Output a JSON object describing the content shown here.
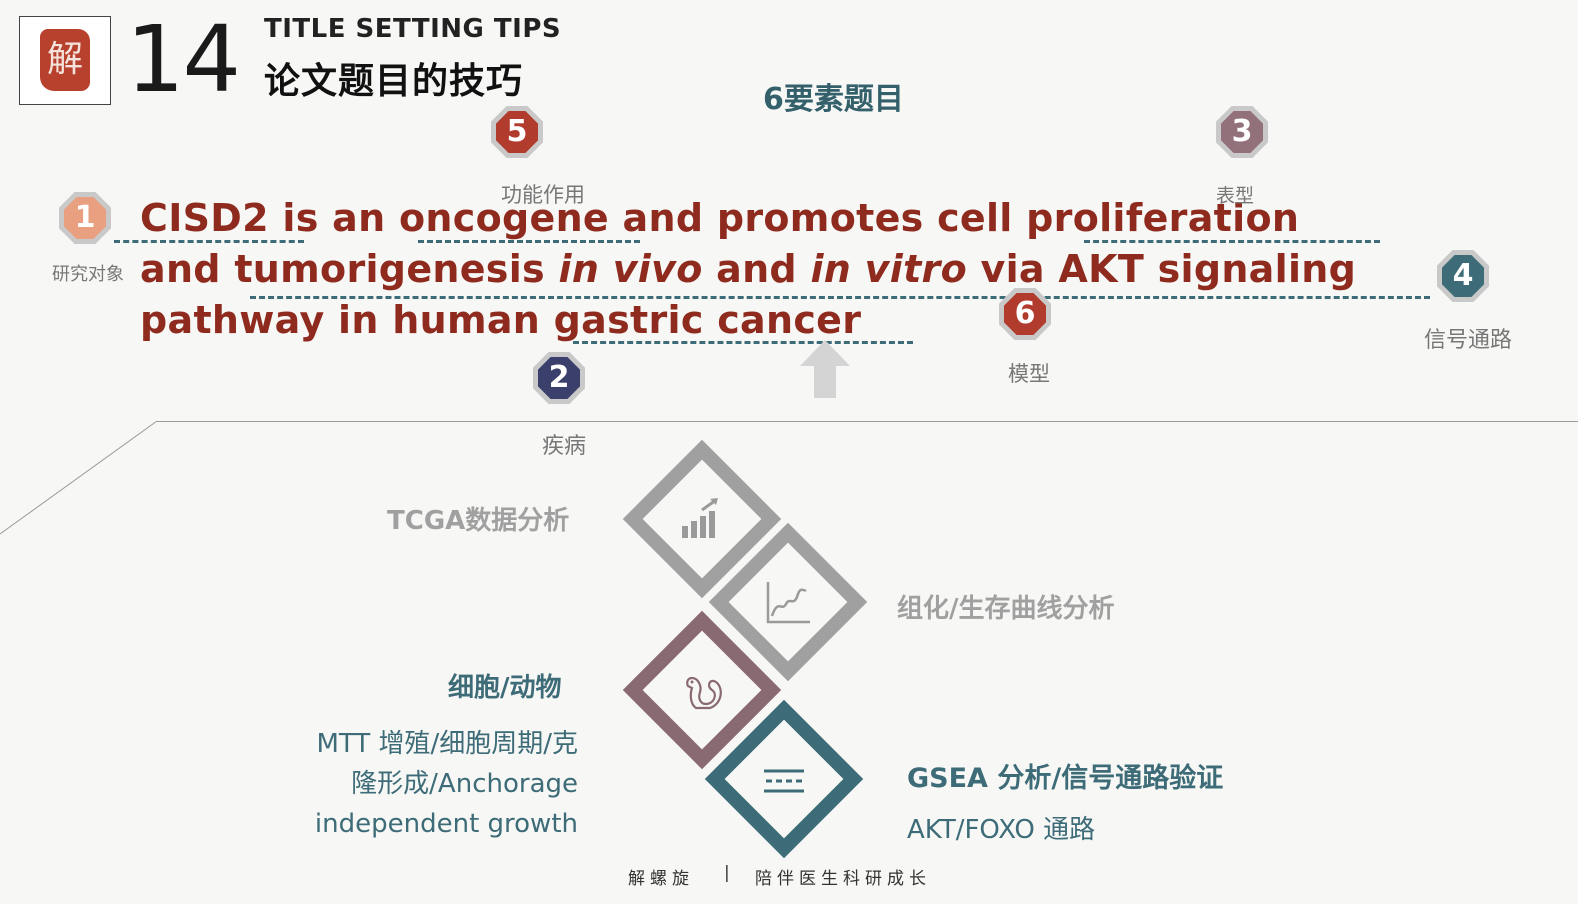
{
  "header": {
    "logo_char": "解",
    "section_number": "14",
    "section_title_en": "TITLE SETTING TIPS",
    "section_title_cn": "论文题目的技巧"
  },
  "heading": "6要素题目",
  "title_lines": [
    "CISD2 is an oncogene and promotes cell proliferation",
    "and tumorigenesis ",
    "in vivo",
    " and ",
    "in vitro",
    " via AKT signaling",
    "pathway in human gastric cancer"
  ],
  "badges": [
    {
      "number": "1",
      "label": "研究对象",
      "color": "#e8a081"
    },
    {
      "number": "2",
      "label": "疾病",
      "color": "#3a3f6b"
    },
    {
      "number": "3",
      "label": "表型",
      "color": "#92717b"
    },
    {
      "number": "4",
      "label": "信号通路",
      "color": "#3d6c78"
    },
    {
      "number": "5",
      "label": "功能作用",
      "color": "#b13b2d"
    },
    {
      "number": "6",
      "label": "模型",
      "color": "#b13b2d"
    }
  ],
  "analyses": [
    {
      "label": "TCGA数据分析",
      "icon": "bar-chart-icon",
      "color": "#a0a0a0"
    },
    {
      "label": "组化/生存曲线分析",
      "icon": "line-chart-icon",
      "color": "#a0a0a0"
    },
    {
      "label": "细胞/动物",
      "icon": "squirrel-icon",
      "color": "#8a6a72",
      "desc": [
        "MTT 增殖/细胞周期/克",
        "隆形成/Anchorage",
        "independent growth"
      ]
    },
    {
      "label": "GSEA 分析/信号通路验证",
      "icon": "pathway-icon",
      "color": "#3d6c78",
      "desc": [
        "AKT/FOXO 通路"
      ]
    }
  ],
  "footer": {
    "left": "解螺旋",
    "divider": "|",
    "right": "陪伴医生科研成长"
  }
}
